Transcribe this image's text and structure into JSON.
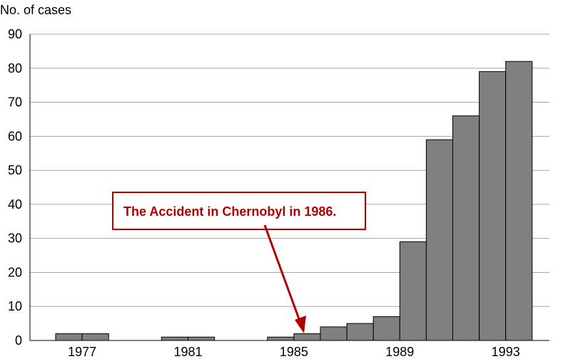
{
  "chart_data": {
    "type": "bar",
    "title": "",
    "ylabel": "No. of cases",
    "xlabel": "",
    "ylim": [
      0,
      90
    ],
    "yticks": [
      "0",
      "10",
      "20",
      "30",
      "40",
      "50",
      "60",
      "70",
      "80",
      "90"
    ],
    "grid": true,
    "categories": [
      "1977",
      "1978",
      "1979",
      "1980",
      "1981",
      "1982",
      "1983",
      "1984",
      "1985",
      "1986",
      "1987",
      "1988",
      "1989",
      "1990",
      "1991",
      "1992",
      "1993",
      "1994"
    ],
    "xtick_labels": [
      "1977",
      "1981",
      "1985",
      "1989",
      "1993"
    ],
    "values": [
      2,
      2,
      0,
      0,
      1,
      1,
      0,
      0,
      1,
      2,
      4,
      5,
      7,
      29,
      59,
      66,
      79,
      82
    ],
    "bar_color": "#808080",
    "bar_edge_color": "#000000",
    "annotation": {
      "text": "The Accident in Chernobyl in 1986.",
      "target_category": "1986",
      "color": "#b20000"
    }
  }
}
